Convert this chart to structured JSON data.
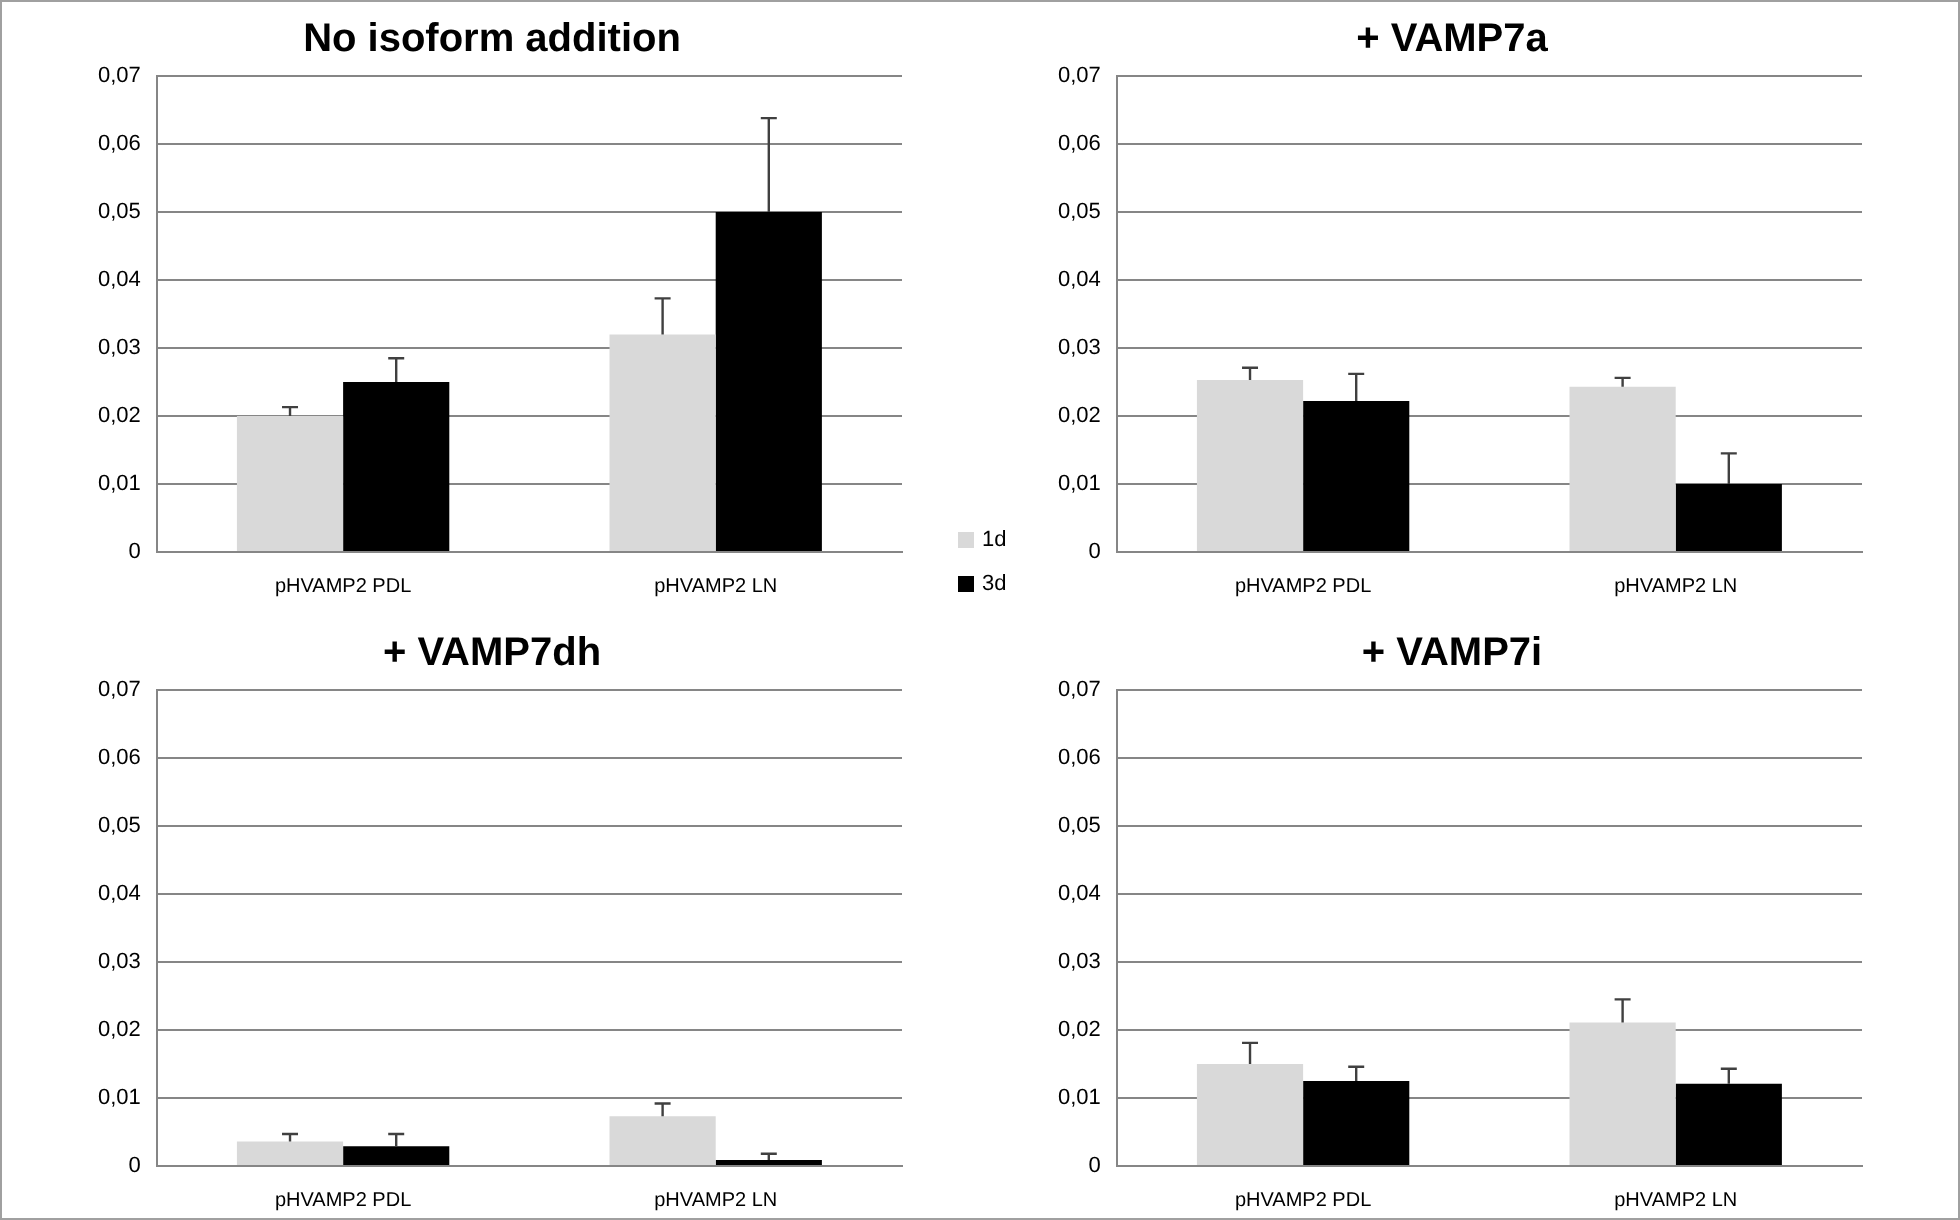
{
  "chart_data": [
    {
      "type": "bar",
      "title": "No isoform addition",
      "categories": [
        "pHVAMP2 PDL",
        "pHVAMP2 LN"
      ],
      "series": [
        {
          "name": "1d",
          "color": "#d9d9d9",
          "values": [
            0.02,
            0.032
          ],
          "errors": [
            [
              0.02,
              0.0213
            ],
            [
              0.032,
              0.0373
            ]
          ]
        },
        {
          "name": "3d",
          "color": "#000000",
          "values": [
            0.025,
            0.05
          ],
          "errors": [
            [
              0.025,
              0.0285
            ],
            [
              0.05,
              0.0638
            ]
          ]
        }
      ],
      "ylim": [
        0,
        0.07
      ],
      "yticks": [
        {
          "value": 0,
          "label": "0"
        },
        {
          "value": 0.01,
          "label": "0,01"
        },
        {
          "value": 0.02,
          "label": "0,02"
        },
        {
          "value": 0.03,
          "label": "0,03"
        },
        {
          "value": 0.04,
          "label": "0,04"
        },
        {
          "value": 0.05,
          "label": "0,05"
        },
        {
          "value": 0.06,
          "label": "0,06"
        },
        {
          "value": 0.07,
          "label": "0,07"
        }
      ],
      "grid": "y",
      "legend": "right"
    },
    {
      "type": "bar",
      "title": "+ VAMP7a",
      "categories": [
        "pHVAMP2 PDL",
        "pHVAMP2 LN"
      ],
      "series": [
        {
          "color": "#d9d9d9",
          "values": [
            0.0253,
            0.0243
          ],
          "errors": [
            [
              0.0253,
              0.0271
            ],
            [
              0.0243,
              0.0256
            ]
          ]
        },
        {
          "color": "#000000",
          "values": [
            0.0222,
            0.01
          ],
          "errors": [
            [
              0.0222,
              0.0262
            ],
            [
              0.01,
              0.0145
            ]
          ]
        }
      ],
      "ylim": [
        0,
        0.07
      ],
      "yticks": [
        {
          "value": 0,
          "label": "0"
        },
        {
          "value": 0.01,
          "label": "0,01"
        },
        {
          "value": 0.02,
          "label": "0,02"
        },
        {
          "value": 0.03,
          "label": "0,03"
        },
        {
          "value": 0.04,
          "label": "0,04"
        },
        {
          "value": 0.05,
          "label": "0,05"
        },
        {
          "value": 0.06,
          "label": "0,06"
        },
        {
          "value": 0.07,
          "label": "0,07"
        }
      ],
      "grid": "y"
    },
    {
      "type": "bar",
      "title": "+ VAMP7dh",
      "categories": [
        "pHVAMP2 PDL",
        "pHVAMP2 LN"
      ],
      "series": [
        {
          "color": "#d9d9d9",
          "values": [
            0.0036,
            0.0073
          ],
          "errors": [
            [
              0.0036,
              0.0047
            ],
            [
              0.0073,
              0.0092
            ]
          ]
        },
        {
          "color": "#000000",
          "values": [
            0.0029,
            0.0009
          ],
          "errors": [
            [
              0.0029,
              0.0047
            ],
            [
              0.0009,
              0.0018
            ]
          ]
        }
      ],
      "ylim": [
        0,
        0.07
      ],
      "yticks": [
        {
          "value": 0,
          "label": "0"
        },
        {
          "value": 0.01,
          "label": "0,01"
        },
        {
          "value": 0.02,
          "label": "0,02"
        },
        {
          "value": 0.03,
          "label": "0,03"
        },
        {
          "value": 0.04,
          "label": "0,04"
        },
        {
          "value": 0.05,
          "label": "0,05"
        },
        {
          "value": 0.06,
          "label": "0,06"
        },
        {
          "value": 0.07,
          "label": "0,07"
        }
      ],
      "grid": "y"
    },
    {
      "type": "bar",
      "title": "+ VAMP7i",
      "categories": [
        "pHVAMP2 PDL",
        "pHVAMP2 LN"
      ],
      "series": [
        {
          "color": "#d9d9d9",
          "values": [
            0.015,
            0.0211
          ],
          "errors": [
            [
              0.015,
              0.0181
            ],
            [
              0.0211,
              0.0245
            ]
          ]
        },
        {
          "color": "#000000",
          "values": [
            0.0125,
            0.0121
          ],
          "errors": [
            [
              0.0125,
              0.0146
            ],
            [
              0.0121,
              0.0143
            ]
          ]
        }
      ],
      "ylim": [
        0,
        0.07
      ],
      "yticks": [
        {
          "value": 0,
          "label": "0"
        },
        {
          "value": 0.01,
          "label": "0,01"
        },
        {
          "value": 0.02,
          "label": "0,02"
        },
        {
          "value": 0.03,
          "label": "0,03"
        },
        {
          "value": 0.04,
          "label": "0,04"
        },
        {
          "value": 0.05,
          "label": "0,05"
        },
        {
          "value": 0.06,
          "label": "0,06"
        },
        {
          "value": 0.07,
          "label": "0,07"
        }
      ],
      "grid": "y"
    }
  ]
}
